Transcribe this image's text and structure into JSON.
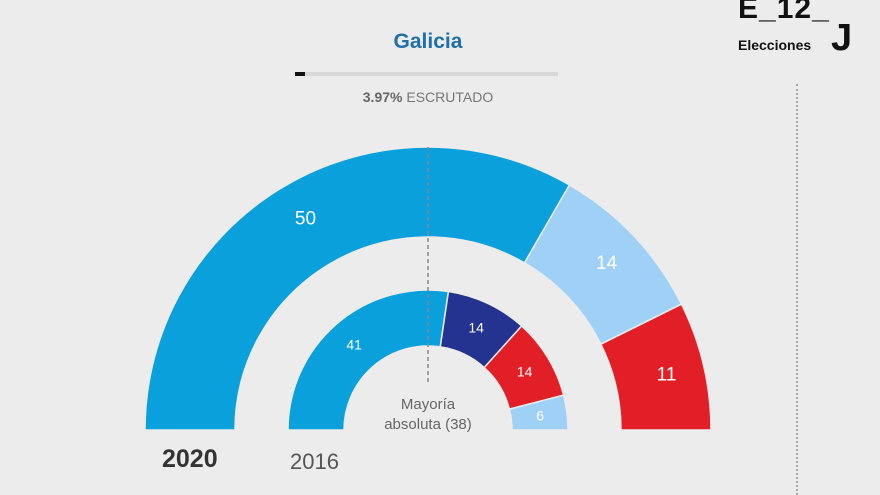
{
  "header": {
    "region": "Galicia",
    "progress_label": "ESCRUTADO",
    "progress_percent_text": "3.97%",
    "progress_fraction": 0.0397
  },
  "logo": {
    "top_text": "E_12_",
    "bottom_text": "Elecciones",
    "letter": "J"
  },
  "chart_data": {
    "type": "pie",
    "subtype": "parliament-semicircle",
    "total_seats": 75,
    "majority_label": [
      "Mayoría",
      "absoluta (38)"
    ],
    "majority_seats": 38,
    "rings": [
      {
        "year": "2020",
        "segments": [
          {
            "value": 50,
            "color": "#0aa0dc"
          },
          {
            "value": 14,
            "color": "#9fd1f7"
          },
          {
            "value": 11,
            "color": "#e21f26"
          }
        ]
      },
      {
        "year": "2016",
        "segments": [
          {
            "value": 41,
            "color": "#0aa0dc"
          },
          {
            "value": 14,
            "color": "#23338f"
          },
          {
            "value": 14,
            "color": "#e21f26"
          },
          {
            "value": 6,
            "color": "#9fd1f7"
          }
        ]
      }
    ]
  }
}
